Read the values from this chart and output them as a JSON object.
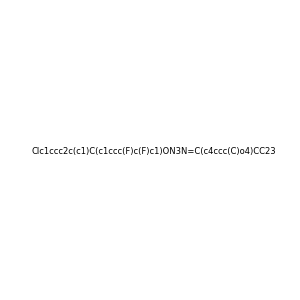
{
  "smiles": "Clc1ccc2c(c1)C(c1ccc(F)c(F)c1)ON3N=C(c4ccc(C)o4)CC23",
  "title": "",
  "img_size": [
    300,
    300
  ],
  "background_color": "#e8e8e8",
  "atom_colors": {
    "N": "#0000ff",
    "O": "#ff0000",
    "Cl": "#00cc00",
    "F": "#ff00ff",
    "C": "#000000"
  }
}
